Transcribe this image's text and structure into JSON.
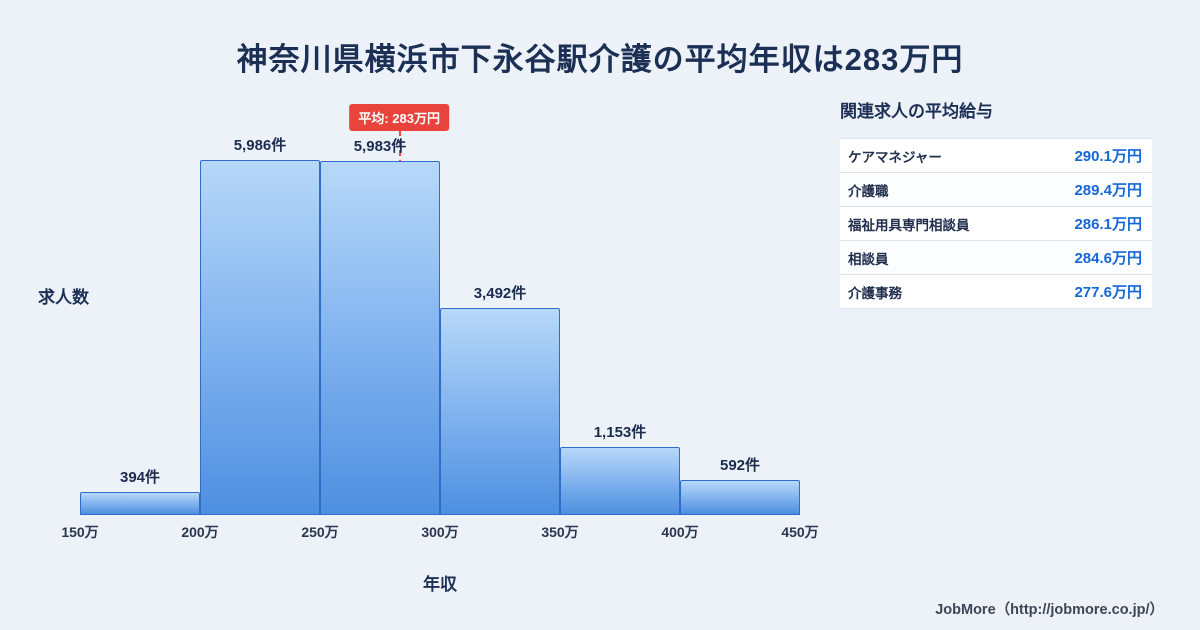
{
  "title": "神奈川県横浜市下永谷駅介護の平均年収は283万円",
  "chart_data": {
    "type": "bar",
    "title": "神奈川県横浜市下永谷駅介護の平均年収は283万円",
    "xlabel": "年収",
    "ylabel": "求人数",
    "x_ticks": [
      "150万",
      "200万",
      "250万",
      "300万",
      "350万",
      "400万",
      "450万"
    ],
    "bins": [
      "150万-200万",
      "200万-250万",
      "250万-300万",
      "300万-350万",
      "350万-400万",
      "400万-450万"
    ],
    "values": [
      394,
      5986,
      5983,
      3492,
      1153,
      592
    ],
    "bar_labels": [
      "394件",
      "5,986件",
      "5,983件",
      "3,492件",
      "1,153件",
      "592件"
    ],
    "xlim": [
      150,
      450
    ],
    "ylim": [
      0,
      6500
    ],
    "grid": false,
    "legend": false,
    "average_line": {
      "value": 283,
      "label": "平均: 283万円"
    }
  },
  "side_panel": {
    "title": "関連求人の平均給与",
    "rows": [
      {
        "label": "ケアマネジャー",
        "value": "290.1万円"
      },
      {
        "label": "介護職",
        "value": "289.4万円"
      },
      {
        "label": "福祉用具専門相談員",
        "value": "286.1万円"
      },
      {
        "label": "相談員",
        "value": "284.6万円"
      },
      {
        "label": "介護事務",
        "value": "277.6万円"
      }
    ]
  },
  "footer": {
    "credit": "JobMore（http://jobmore.co.jp/）"
  },
  "colors": {
    "background": "#edf2f8",
    "title_text": "#1c2f55",
    "bar_fill_top": "#b7d8f8",
    "bar_fill_bottom": "#4e8fe0",
    "bar_border": "#2e6ec9",
    "average_red": "#e8433c",
    "panel_value_blue": "#1667d6"
  }
}
